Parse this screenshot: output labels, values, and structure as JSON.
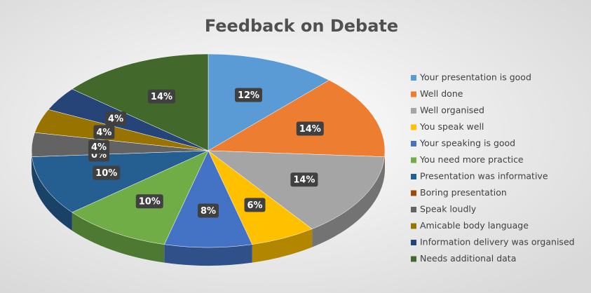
{
  "chart_data": {
    "type": "pie",
    "title": "Feedback on Debate",
    "categories": [
      "Your presentation is good",
      "Well done",
      "Well organised",
      "You speak well",
      "Your speaking is good",
      "You need more practice",
      "Presentation was informative",
      "Boring presentation",
      "Speak loudly",
      "Amicable body language",
      "Information delivery was organised",
      "Needs additional data"
    ],
    "values": [
      12,
      14,
      14,
      6,
      8,
      10,
      10,
      0,
      4,
      4,
      4,
      14
    ],
    "value_labels": [
      "12%",
      "14%",
      "14%",
      "6%",
      "8%",
      "10%",
      "10%",
      "0%",
      "4%",
      "4%",
      "4%",
      "14%"
    ],
    "colors": [
      "#5b9bd5",
      "#ed7d31",
      "#a5a5a5",
      "#ffc000",
      "#4472c4",
      "#70ad47",
      "#255e91",
      "#9e480e",
      "#636363",
      "#997300",
      "#264478",
      "#43682b"
    ],
    "legend": "right"
  }
}
